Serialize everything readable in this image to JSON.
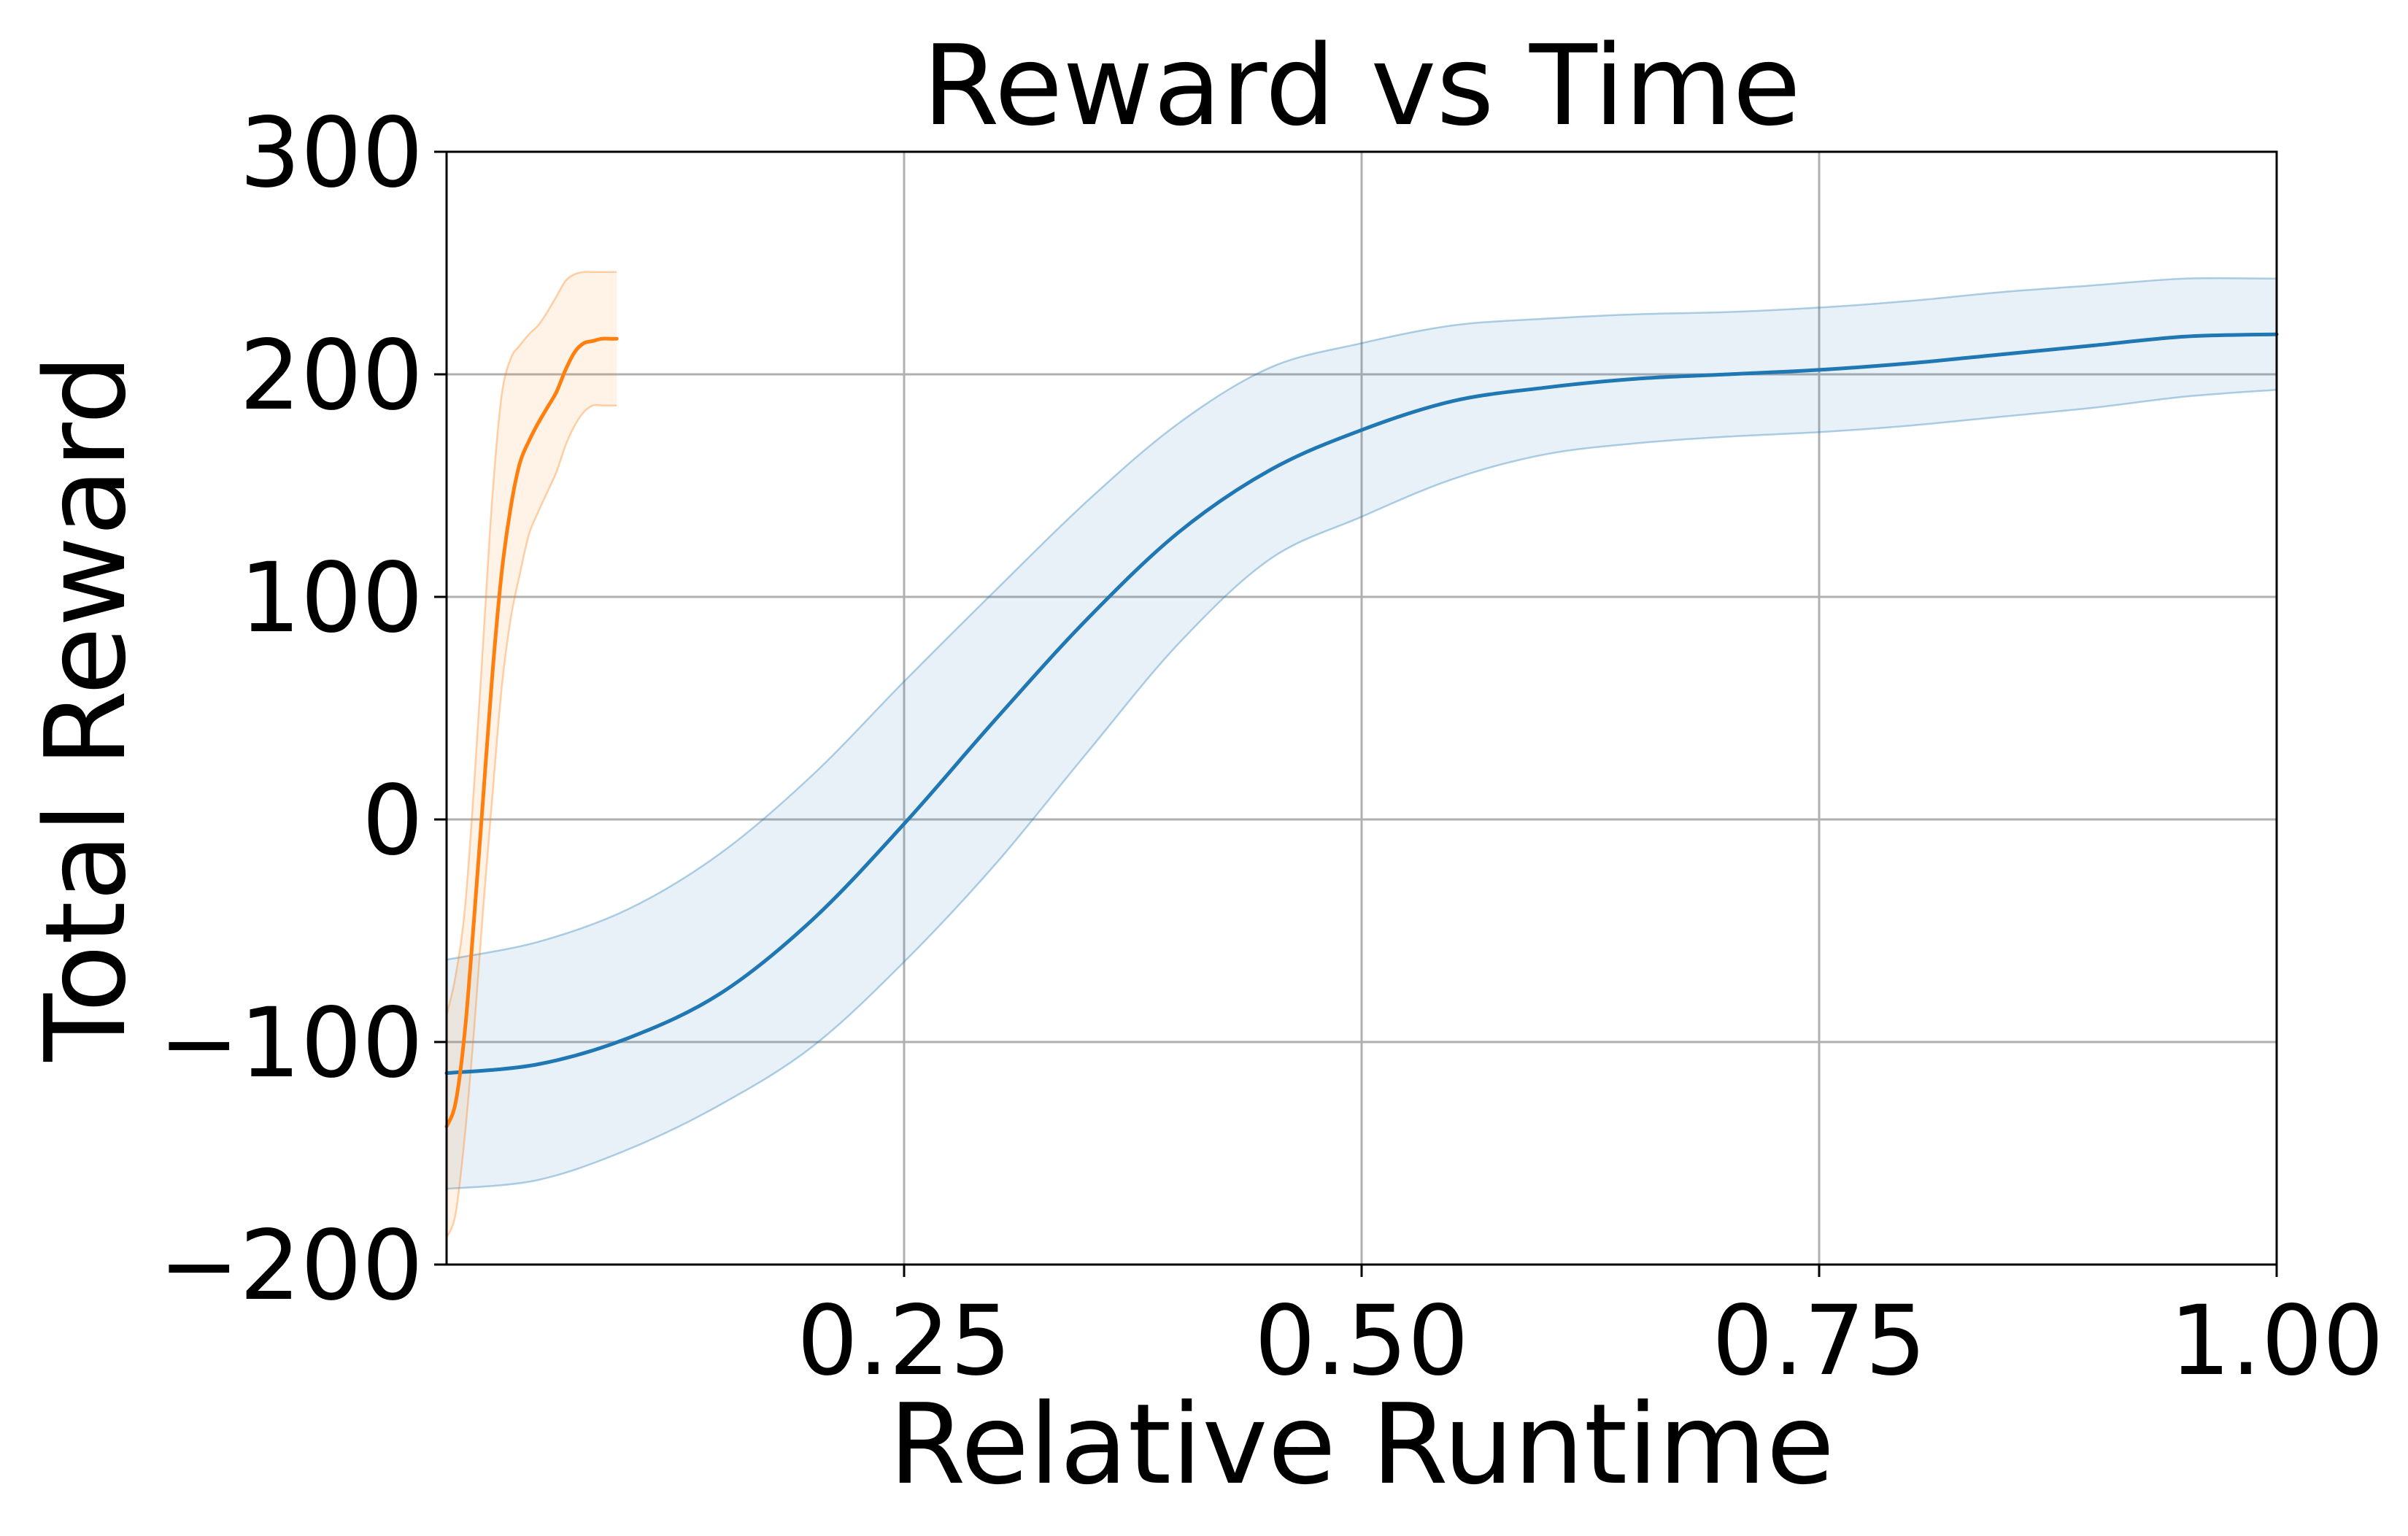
{
  "chart_data": {
    "type": "line",
    "title": "Reward vs Time",
    "xlabel": "Relative Runtime",
    "ylabel": "Total Reward",
    "xlim": [
      0.0,
      1.0
    ],
    "ylim": [
      -200,
      300
    ],
    "x_ticks": [
      0.25,
      0.5,
      0.75,
      1.0
    ],
    "x_tick_labels": [
      "0.25",
      "0.50",
      "0.75",
      "1.00"
    ],
    "y_ticks": [
      -200,
      -100,
      0,
      100,
      200,
      300
    ],
    "y_tick_labels": [
      "−200",
      "−100",
      "0",
      "100",
      "200",
      "300"
    ],
    "grid": true,
    "legend": null,
    "series": [
      {
        "color": "#1f77b4",
        "x": [
          0.0,
          0.05,
          0.1,
          0.15,
          0.2,
          0.25,
          0.3,
          0.35,
          0.4,
          0.45,
          0.5,
          0.55,
          0.6,
          0.65,
          0.7,
          0.75,
          0.8,
          0.85,
          0.9,
          0.95,
          1.0
        ],
        "y": [
          -114,
          -110,
          -98,
          -78,
          -45,
          -2,
          45,
          90,
          129,
          157,
          175,
          188,
          194,
          198,
          200,
          202,
          205,
          209,
          213,
          217,
          218
        ],
        "lower": [
          -166,
          -162,
          -148,
          -128,
          -102,
          -64,
          -20,
          30,
          79,
          117,
          136,
          153,
          164,
          169,
          172,
          174,
          177,
          181,
          185,
          190,
          193
        ],
        "upper": [
          -63,
          -55,
          -40,
          -15,
          20,
          62,
          103,
          143,
          178,
          203,
          214,
          222,
          225,
          227,
          228,
          230,
          233,
          237,
          240,
          243,
          243
        ]
      },
      {
        "color": "#ff7f0e",
        "x": [
          0.0,
          0.005,
          0.01,
          0.015,
          0.02,
          0.025,
          0.03,
          0.035,
          0.04,
          0.045,
          0.05,
          0.055,
          0.06,
          0.065,
          0.07,
          0.075,
          0.08,
          0.085,
          0.09,
          0.093
        ],
        "y": [
          -138,
          -127,
          -95,
          -45,
          10,
          65,
          110,
          140,
          160,
          170,
          178,
          185,
          192,
          202,
          210,
          214,
          215,
          216,
          216,
          216
        ],
        "lower": [
          -188,
          -177,
          -142,
          -95,
          -40,
          10,
          58,
          90,
          110,
          128,
          138,
          147,
          156,
          168,
          177,
          183,
          186,
          186,
          186,
          186
        ],
        "upper": [
          -88,
          -70,
          -40,
          15,
          80,
          145,
          190,
          207,
          213,
          218,
          222,
          228,
          235,
          242,
          245,
          246,
          246,
          246,
          246,
          246
        ]
      }
    ]
  }
}
